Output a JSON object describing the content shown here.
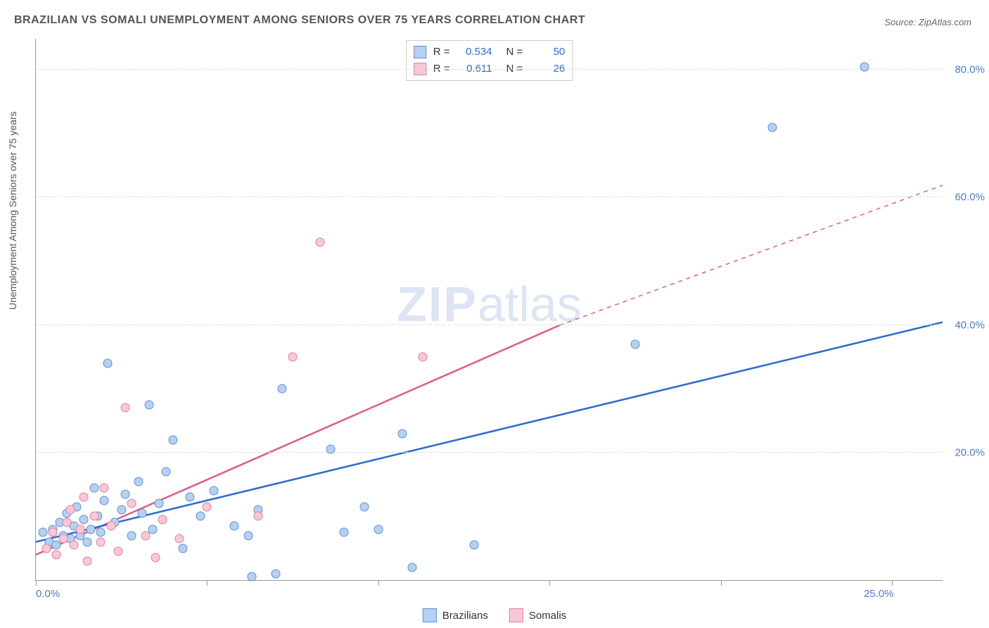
{
  "title": "BRAZILIAN VS SOMALI UNEMPLOYMENT AMONG SENIORS OVER 75 YEARS CORRELATION CHART",
  "source_label": "Source: ZipAtlas.com",
  "y_axis_title": "Unemployment Among Seniors over 75 years",
  "watermark_bold": "ZIP",
  "watermark_rest": "atlas",
  "chart": {
    "type": "scatter",
    "xlim": [
      0,
      26.5
    ],
    "ylim": [
      0,
      85
    ],
    "x_ticks": [
      0,
      5,
      10,
      15,
      20,
      25
    ],
    "x_tick_labels": {
      "0": "0.0%",
      "25": "25.0%"
    },
    "y_grid": [
      20,
      40,
      60,
      80
    ],
    "y_tick_labels": {
      "20": "20.0%",
      "40": "40.0%",
      "60": "60.0%",
      "80": "80.0%"
    },
    "marker_radius": 6.5,
    "background_color": "#ffffff",
    "grid_color": "#dddddd",
    "axis_color": "#999999",
    "tick_label_color": "#4a7ec9",
    "series": [
      {
        "name": "Brazilians",
        "fill": "#b6d0f0",
        "stroke": "#5a93d8",
        "trend_color": "#2e6bd1",
        "trend_width": 2.5,
        "trend": {
          "x1": 0,
          "y1": 6.0,
          "x2": 26.5,
          "y2": 40.5,
          "dash": "none"
        },
        "R": "0.534",
        "N": "50",
        "points": [
          [
            0.2,
            7.5
          ],
          [
            0.4,
            6.0
          ],
          [
            0.5,
            8.0
          ],
          [
            0.6,
            5.5
          ],
          [
            0.7,
            9.0
          ],
          [
            0.8,
            7.0
          ],
          [
            0.9,
            10.5
          ],
          [
            1.0,
            6.5
          ],
          [
            1.1,
            8.5
          ],
          [
            1.2,
            11.5
          ],
          [
            1.3,
            7.0
          ],
          [
            1.4,
            9.5
          ],
          [
            1.5,
            6.0
          ],
          [
            1.6,
            8.0
          ],
          [
            1.7,
            14.5
          ],
          [
            1.8,
            10.0
          ],
          [
            1.9,
            7.5
          ],
          [
            2.0,
            12.5
          ],
          [
            2.1,
            34.0
          ],
          [
            2.3,
            9.0
          ],
          [
            2.5,
            11.0
          ],
          [
            2.6,
            13.5
          ],
          [
            2.8,
            7.0
          ],
          [
            3.0,
            15.5
          ],
          [
            3.1,
            10.5
          ],
          [
            3.3,
            27.5
          ],
          [
            3.4,
            8.0
          ],
          [
            3.6,
            12.0
          ],
          [
            3.8,
            17.0
          ],
          [
            4.0,
            22.0
          ],
          [
            4.3,
            5.0
          ],
          [
            4.5,
            13.0
          ],
          [
            4.8,
            10.0
          ],
          [
            5.2,
            14.0
          ],
          [
            5.8,
            8.5
          ],
          [
            6.2,
            7.0
          ],
          [
            6.3,
            0.5
          ],
          [
            6.5,
            11.0
          ],
          [
            7.0,
            1.0
          ],
          [
            7.2,
            30.0
          ],
          [
            8.6,
            20.5
          ],
          [
            9.0,
            7.5
          ],
          [
            9.6,
            11.5
          ],
          [
            10.0,
            8.0
          ],
          [
            10.7,
            23.0
          ],
          [
            11.0,
            2.0
          ],
          [
            12.8,
            5.5
          ],
          [
            17.5,
            37.0
          ],
          [
            21.5,
            71.0
          ],
          [
            24.2,
            80.5
          ]
        ]
      },
      {
        "name": "Somalis",
        "fill": "#f7c9d4",
        "stroke": "#e77ea1",
        "trend_color": "#e35a84",
        "trend_width": 2.5,
        "trend_solid": {
          "x1": 0,
          "y1": 4.0,
          "x2": 15.3,
          "y2": 40.0
        },
        "trend_dash": {
          "x1": 15.3,
          "y1": 40.0,
          "x2": 26.5,
          "y2": 62.0
        },
        "R": "0.611",
        "N": "26",
        "points": [
          [
            0.3,
            5.0
          ],
          [
            0.5,
            7.5
          ],
          [
            0.6,
            4.0
          ],
          [
            0.8,
            6.5
          ],
          [
            0.9,
            9.0
          ],
          [
            1.0,
            11.0
          ],
          [
            1.1,
            5.5
          ],
          [
            1.3,
            8.0
          ],
          [
            1.4,
            13.0
          ],
          [
            1.5,
            3.0
          ],
          [
            1.7,
            10.0
          ],
          [
            1.9,
            6.0
          ],
          [
            2.0,
            14.5
          ],
          [
            2.2,
            8.5
          ],
          [
            2.4,
            4.5
          ],
          [
            2.6,
            27.0
          ],
          [
            2.8,
            12.0
          ],
          [
            3.2,
            7.0
          ],
          [
            3.5,
            3.5
          ],
          [
            3.7,
            9.5
          ],
          [
            4.2,
            6.5
          ],
          [
            5.0,
            11.5
          ],
          [
            6.5,
            10.0
          ],
          [
            7.5,
            35.0
          ],
          [
            8.3,
            53.0
          ],
          [
            11.3,
            35.0
          ]
        ]
      }
    ]
  },
  "stats_box": {
    "rows": [
      {
        "swatch_fill": "#b6d0f0",
        "swatch_stroke": "#5a93d8",
        "R_label": "R =",
        "R_val": "0.534",
        "N_label": "N =",
        "N_val": "50"
      },
      {
        "swatch_fill": "#f7c9d4",
        "swatch_stroke": "#e77ea1",
        "R_label": "R =",
        "R_val": "0.611",
        "N_label": "N =",
        "N_val": "26"
      }
    ]
  },
  "legend": {
    "items": [
      {
        "label": "Brazilians",
        "fill": "#b6d0f0",
        "stroke": "#5a93d8"
      },
      {
        "label": "Somalis",
        "fill": "#f7c9d4",
        "stroke": "#e77ea1"
      }
    ]
  }
}
